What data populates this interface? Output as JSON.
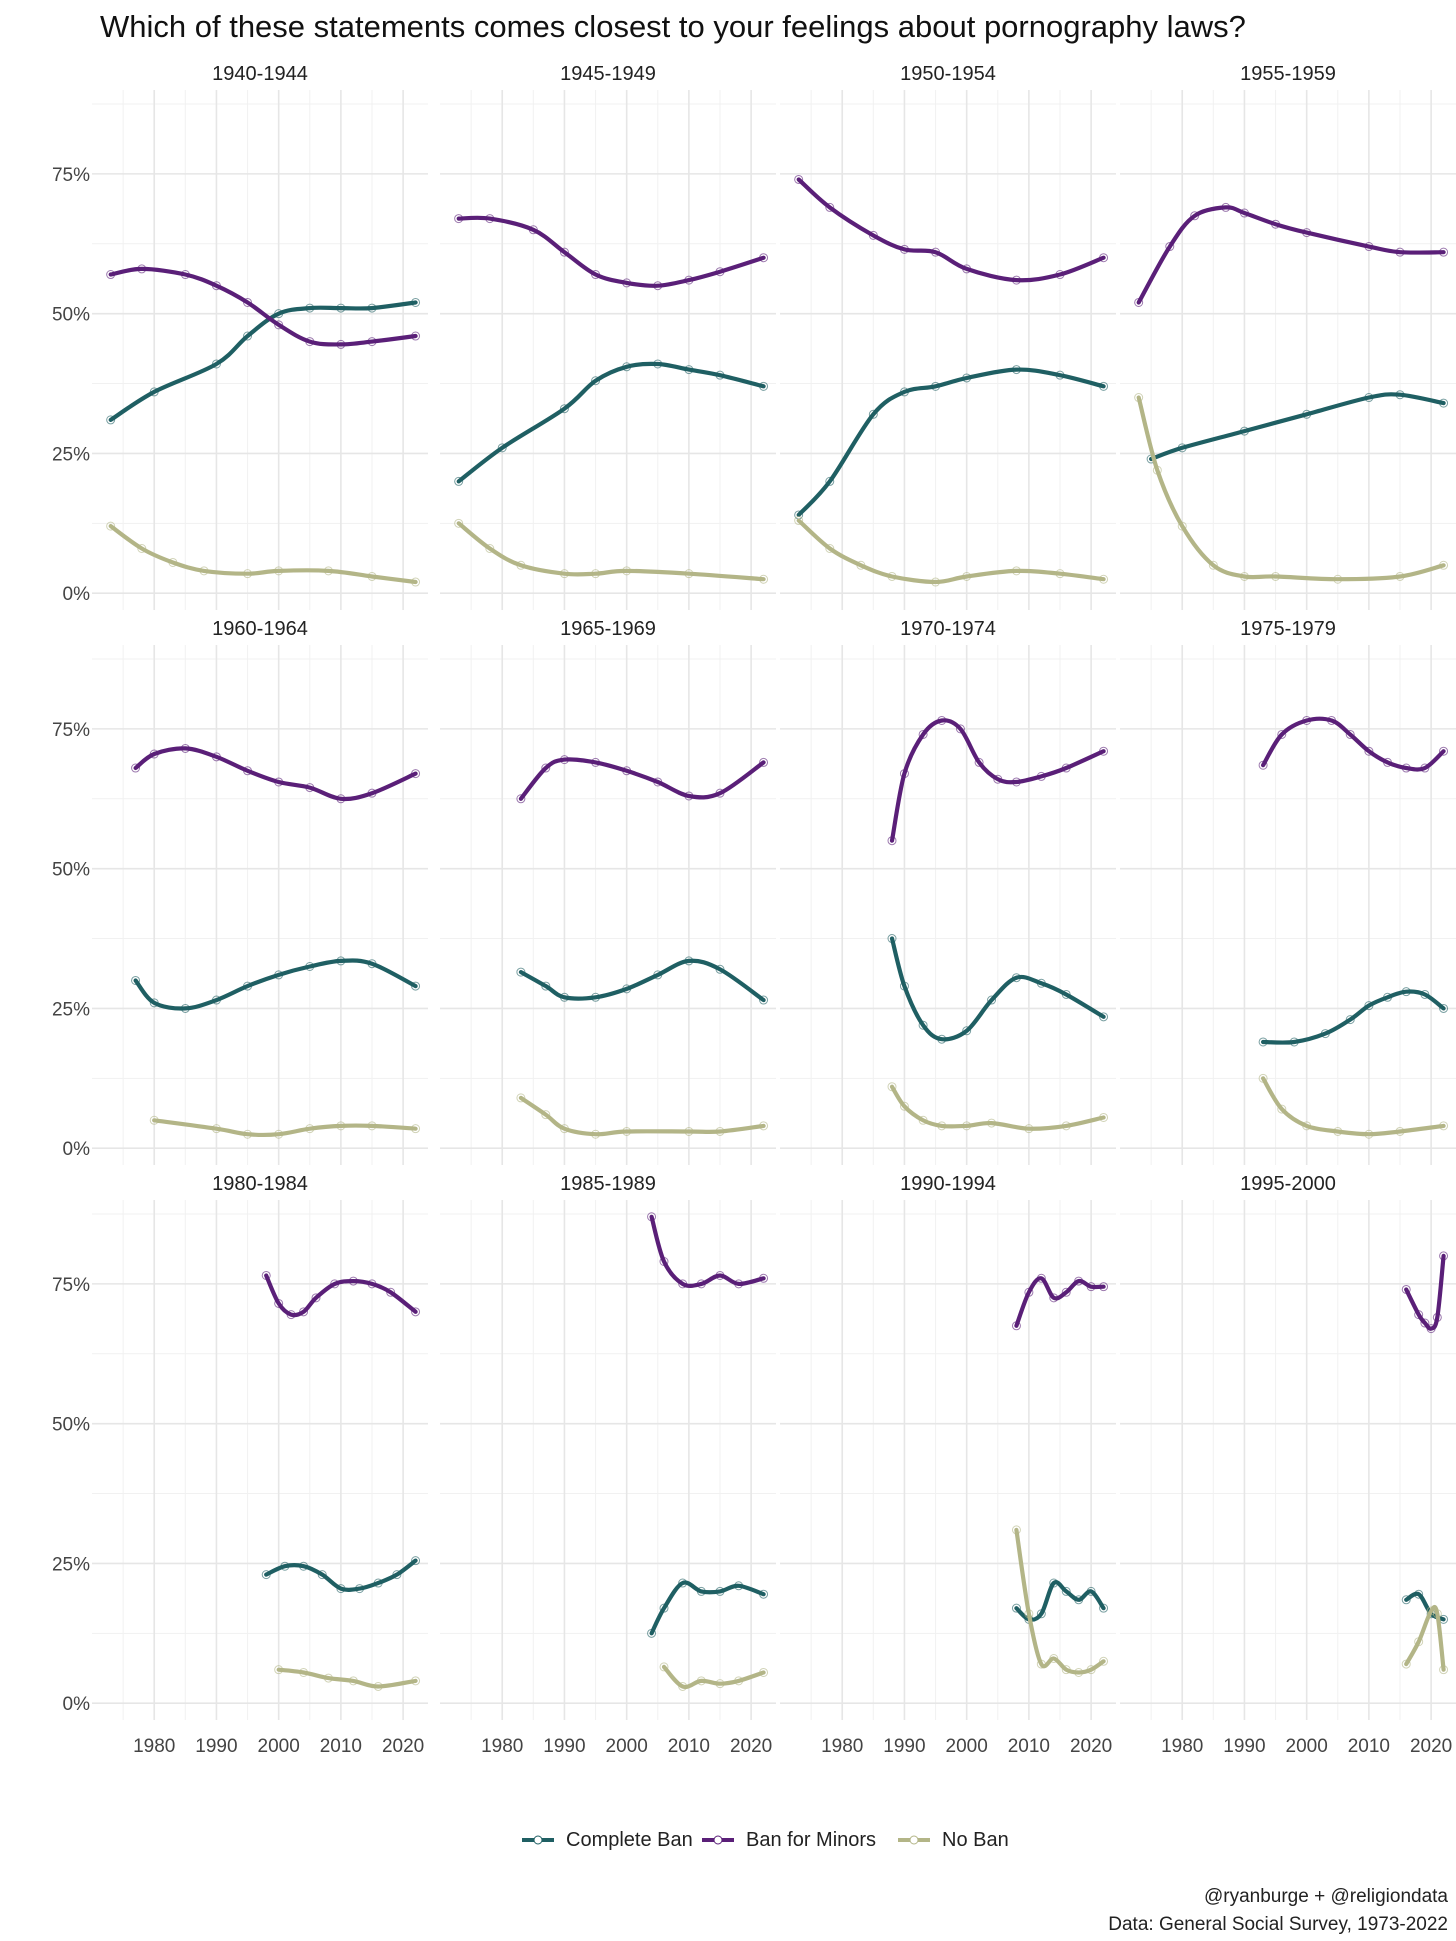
{
  "chart_data": {
    "type": "line",
    "title": "Which of these statements comes closest to your feelings about pornography laws?",
    "xlabel": "",
    "ylabel": "",
    "x_ticks": [
      1980,
      1990,
      2000,
      2010,
      2020
    ],
    "y_ticks": [
      "0%",
      "25%",
      "50%",
      "75%"
    ],
    "y_tick_values": [
      0,
      25,
      50,
      75
    ],
    "xlim": [
      1970,
      2024
    ],
    "ylim": [
      -3,
      90
    ],
    "grid": true,
    "legend_position": "bottom",
    "series_styles": [
      {
        "name": "Complete Ban",
        "color": "#1f5f63"
      },
      {
        "name": "Ban for Minors",
        "color": "#5a1f78"
      },
      {
        "name": "No Ban",
        "color": "#b3b587"
      }
    ],
    "caption": [
      "@ryanburge + @religiondata",
      "Data: General Social Survey, 1973-2022"
    ],
    "panels": [
      {
        "label": "1940-1944",
        "series": [
          {
            "name": "Complete Ban",
            "x": [
              1973,
              1980,
              1990,
              1995,
              2000,
              2005,
              2010,
              2015,
              2022
            ],
            "y": [
              31,
              36,
              41,
              46,
              50,
              51,
              51,
              51,
              52
            ]
          },
          {
            "name": "Ban for Minors",
            "x": [
              1973,
              1978,
              1985,
              1990,
              1995,
              2000,
              2005,
              2010,
              2015,
              2022
            ],
            "y": [
              57,
              58,
              57,
              55,
              52,
              48,
              45,
              44.5,
              45,
              46
            ]
          },
          {
            "name": "No Ban",
            "x": [
              1973,
              1978,
              1983,
              1988,
              1995,
              2000,
              2008,
              2015,
              2022
            ],
            "y": [
              12,
              8,
              5.5,
              4,
              3.5,
              4,
              4,
              3,
              2
            ]
          }
        ]
      },
      {
        "label": "1945-1949",
        "series": [
          {
            "name": "Complete Ban",
            "x": [
              1973,
              1980,
              1990,
              1995,
              2000,
              2005,
              2010,
              2015,
              2022
            ],
            "y": [
              20,
              26,
              33,
              38,
              40.5,
              41,
              40,
              39,
              37
            ]
          },
          {
            "name": "Ban for Minors",
            "x": [
              1973,
              1978,
              1985,
              1990,
              1995,
              2000,
              2005,
              2010,
              2015,
              2022
            ],
            "y": [
              67,
              67,
              65,
              61,
              57,
              55.5,
              55,
              56,
              57.5,
              60
            ]
          },
          {
            "name": "No Ban",
            "x": [
              1973,
              1978,
              1983,
              1990,
              1995,
              2000,
              2010,
              2022
            ],
            "y": [
              12.5,
              8,
              5,
              3.5,
              3.5,
              4,
              3.5,
              2.5
            ]
          }
        ]
      },
      {
        "label": "1950-1954",
        "series": [
          {
            "name": "Complete Ban",
            "x": [
              1973,
              1978,
              1985,
              1990,
              1995,
              2000,
              2008,
              2015,
              2022
            ],
            "y": [
              14,
              20,
              32,
              36,
              37,
              38.5,
              40,
              39,
              37
            ]
          },
          {
            "name": "Ban for Minors",
            "x": [
              1973,
              1978,
              1985,
              1990,
              1995,
              2000,
              2008,
              2015,
              2022
            ],
            "y": [
              74,
              69,
              64,
              61.5,
              61,
              58,
              56,
              57,
              60
            ]
          },
          {
            "name": "No Ban",
            "x": [
              1973,
              1978,
              1983,
              1988,
              1995,
              2000,
              2008,
              2015,
              2022
            ],
            "y": [
              13,
              8,
              5,
              3,
              2,
              3,
              4,
              3.5,
              2.5
            ]
          }
        ]
      },
      {
        "label": "1955-1959",
        "series": [
          {
            "name": "Complete Ban",
            "x": [
              1975,
              1980,
              1990,
              2000,
              2010,
              2015,
              2022
            ],
            "y": [
              24,
              26,
              29,
              32,
              35,
              35.5,
              34
            ]
          },
          {
            "name": "Ban for Minors",
            "x": [
              1973,
              1978,
              1982,
              1987,
              1990,
              1995,
              2000,
              2010,
              2015,
              2022
            ],
            "y": [
              52,
              62,
              67.5,
              69,
              68,
              66,
              64.5,
              62,
              61,
              61
            ]
          },
          {
            "name": "No Ban",
            "x": [
              1973,
              1976,
              1980,
              1985,
              1990,
              1995,
              2005,
              2015,
              2022
            ],
            "y": [
              35,
              22,
              12,
              5,
              3,
              3,
              2.5,
              3,
              5
            ]
          }
        ]
      },
      {
        "label": "1960-1964",
        "series": [
          {
            "name": "Complete Ban",
            "x": [
              1977,
              1980,
              1985,
              1990,
              1995,
              2000,
              2005,
              2010,
              2015,
              2022
            ],
            "y": [
              30,
              26,
              25,
              26.5,
              29,
              31,
              32.5,
              33.5,
              33,
              29
            ]
          },
          {
            "name": "Ban for Minors",
            "x": [
              1977,
              1980,
              1985,
              1990,
              1995,
              2000,
              2005,
              2010,
              2015,
              2022
            ],
            "y": [
              68,
              70.5,
              71.5,
              70,
              67.5,
              65.5,
              64.5,
              62.5,
              63.5,
              67
            ]
          },
          {
            "name": "No Ban",
            "x": [
              1980,
              1990,
              1995,
              2000,
              2005,
              2010,
              2015,
              2022
            ],
            "y": [
              5,
              3.5,
              2.5,
              2.5,
              3.5,
              4,
              4,
              3.5
            ]
          }
        ]
      },
      {
        "label": "1965-1969",
        "series": [
          {
            "name": "Complete Ban",
            "x": [
              1983,
              1987,
              1990,
              1995,
              2000,
              2005,
              2010,
              2015,
              2022
            ],
            "y": [
              31.5,
              29,
              27,
              27,
              28.5,
              31,
              33.5,
              32,
              26.5
            ]
          },
          {
            "name": "Ban for Minors",
            "x": [
              1983,
              1987,
              1990,
              1995,
              2000,
              2005,
              2010,
              2015,
              2022
            ],
            "y": [
              62.5,
              68,
              69.5,
              69,
              67.5,
              65.5,
              63,
              63.5,
              69
            ]
          },
          {
            "name": "No Ban",
            "x": [
              1983,
              1987,
              1990,
              1995,
              2000,
              2010,
              2015,
              2022
            ],
            "y": [
              9,
              6,
              3.5,
              2.5,
              3,
              3,
              3,
              4
            ]
          }
        ]
      },
      {
        "label": "1970-1974",
        "series": [
          {
            "name": "Complete Ban",
            "x": [
              1988,
              1990,
              1993,
              1996,
              2000,
              2004,
              2008,
              2012,
              2016,
              2022
            ],
            "y": [
              37.5,
              29,
              22,
              19.5,
              21,
              26.5,
              30.5,
              29.5,
              27.5,
              23.5
            ]
          },
          {
            "name": "Ban for Minors",
            "x": [
              1988,
              1990,
              1993,
              1996,
              1999,
              2002,
              2005,
              2008,
              2012,
              2016,
              2022
            ],
            "y": [
              55,
              67,
              74,
              76.5,
              75,
              69,
              66,
              65.5,
              66.5,
              68,
              71
            ]
          },
          {
            "name": "No Ban",
            "x": [
              1988,
              1990,
              1993,
              1996,
              2000,
              2004,
              2010,
              2016,
              2022
            ],
            "y": [
              11,
              7.5,
              5,
              4,
              4,
              4.5,
              3.5,
              4,
              5.5
            ]
          }
        ]
      },
      {
        "label": "1975-1979",
        "series": [
          {
            "name": "Complete Ban",
            "x": [
              1993,
              1998,
              2003,
              2007,
              2010,
              2013,
              2016,
              2019,
              2022
            ],
            "y": [
              19,
              19,
              20.5,
              23,
              25.5,
              27,
              28,
              27.5,
              25
            ]
          },
          {
            "name": "Ban for Minors",
            "x": [
              1993,
              1996,
              2000,
              2004,
              2007,
              2010,
              2013,
              2016,
              2019,
              2022
            ],
            "y": [
              68.5,
              74,
              76.5,
              76.5,
              74,
              71,
              69,
              68,
              68,
              71
            ]
          },
          {
            "name": "No Ban",
            "x": [
              1993,
              1996,
              2000,
              2005,
              2010,
              2015,
              2022
            ],
            "y": [
              12.5,
              7,
              4,
              3,
              2.5,
              3,
              4
            ]
          }
        ]
      },
      {
        "label": "1980-1984",
        "series": [
          {
            "name": "Complete Ban",
            "x": [
              1998,
              2001,
              2004,
              2007,
              2010,
              2013,
              2016,
              2019,
              2022
            ],
            "y": [
              23,
              24.5,
              24.5,
              23,
              20.5,
              20.5,
              21.5,
              23,
              25.5
            ]
          },
          {
            "name": "Ban for Minors",
            "x": [
              1998,
              2000,
              2002,
              2004,
              2006,
              2009,
              2012,
              2015,
              2018,
              2022
            ],
            "y": [
              76.5,
              71.5,
              69.5,
              70,
              72.5,
              75,
              75.5,
              75,
              73.5,
              70
            ]
          },
          {
            "name": "No Ban",
            "x": [
              2000,
              2004,
              2008,
              2012,
              2016,
              2022
            ],
            "y": [
              6,
              5.5,
              4.5,
              4,
              3,
              4
            ]
          }
        ]
      },
      {
        "label": "1985-1989",
        "series": [
          {
            "name": "Complete Ban",
            "x": [
              2004,
              2006,
              2009,
              2012,
              2015,
              2018,
              2022
            ],
            "y": [
              12.5,
              17,
              21.5,
              20,
              20,
              21,
              19.5
            ]
          },
          {
            "name": "Ban for Minors",
            "x": [
              2004,
              2006,
              2009,
              2012,
              2015,
              2018,
              2022
            ],
            "y": [
              87,
              79,
              75,
              75,
              76.5,
              75,
              76
            ]
          },
          {
            "name": "No Ban",
            "x": [
              2006,
              2009,
              2012,
              2015,
              2018,
              2022
            ],
            "y": [
              6.5,
              3,
              4,
              3.5,
              4,
              5.5
            ]
          }
        ]
      },
      {
        "label": "1990-1994",
        "series": [
          {
            "name": "Complete Ban",
            "x": [
              2008,
              2010,
              2012,
              2014,
              2016,
              2018,
              2020,
              2022
            ],
            "y": [
              17,
              15,
              16,
              21.5,
              20,
              18.5,
              20,
              17
            ]
          },
          {
            "name": "Ban for Minors",
            "x": [
              2008,
              2010,
              2012,
              2014,
              2016,
              2018,
              2020,
              2022
            ],
            "y": [
              67.5,
              73.5,
              76,
              72.5,
              73.5,
              75.5,
              74.5,
              74.5
            ]
          },
          {
            "name": "No Ban",
            "x": [
              2008,
              2010,
              2012,
              2014,
              2016,
              2018,
              2020,
              2022
            ],
            "y": [
              31,
              16,
              7,
              8,
              6,
              5.5,
              6,
              7.5
            ]
          }
        ]
      },
      {
        "label": "1995-2000",
        "series": [
          {
            "name": "Complete Ban",
            "x": [
              2016,
              2018,
              2020,
              2022
            ],
            "y": [
              18.5,
              19.5,
              16,
              15
            ]
          },
          {
            "name": "Ban for Minors",
            "x": [
              2016,
              2018,
              2019,
              2020,
              2021,
              2022
            ],
            "y": [
              74,
              69.5,
              68,
              67,
              69,
              80
            ]
          },
          {
            "name": "No Ban",
            "x": [
              2016,
              2018,
              2020,
              2021,
              2022
            ],
            "y": [
              7,
              11,
              16.5,
              16,
              6
            ]
          }
        ]
      }
    ]
  }
}
